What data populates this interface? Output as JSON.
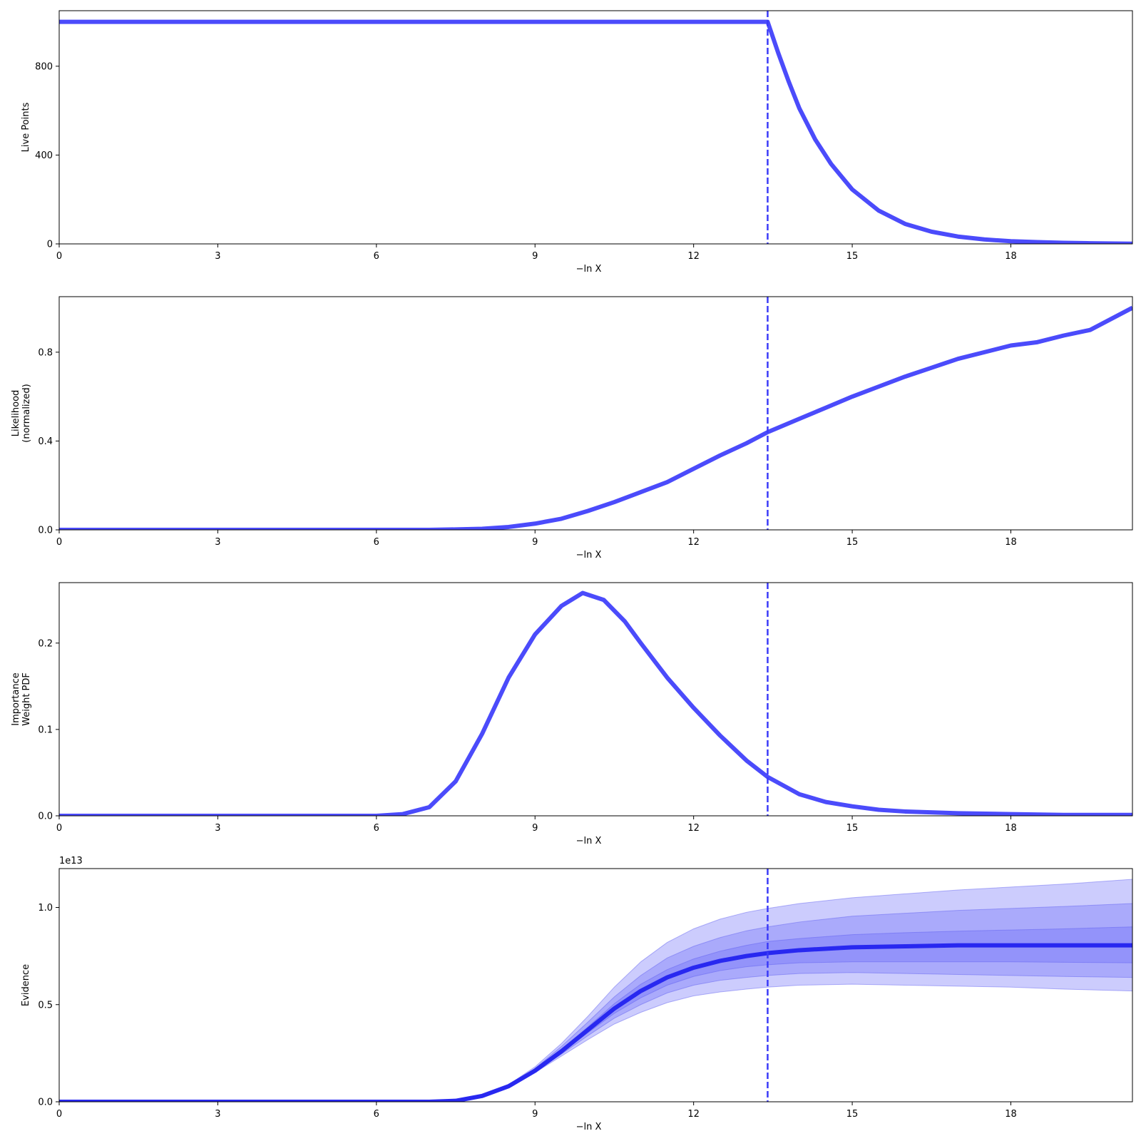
{
  "chart_data": [
    {
      "type": "line",
      "xlabel": "−ln X",
      "ylabel": "Live Points",
      "xlim": [
        0,
        20.3
      ],
      "ylim": [
        0,
        1050
      ],
      "xticks": [
        0,
        3,
        6,
        9,
        12,
        15,
        18
      ],
      "yticks": [
        0,
        400,
        800
      ],
      "ytick_labels": [
        "0",
        "400",
        "800"
      ],
      "vline_x": 13.4,
      "series": [
        {
          "x": [
            0,
            13.4,
            13.6,
            13.8,
            14.0,
            14.3,
            14.6,
            15.0,
            15.5,
            16.0,
            16.5,
            17.0,
            17.5,
            18.0,
            18.5,
            19.0,
            19.5,
            20.3
          ],
          "y": [
            1000,
            1000,
            860,
            730,
            610,
            470,
            360,
            245,
            150,
            90,
            55,
            33,
            20,
            12,
            8,
            5,
            3,
            1
          ]
        }
      ]
    },
    {
      "type": "line",
      "xlabel": "−ln X",
      "ylabel": "Likelihood\n(normalized)",
      "xlim": [
        0,
        20.3
      ],
      "ylim": [
        0,
        1.05
      ],
      "xticks": [
        0,
        3,
        6,
        9,
        12,
        15,
        18
      ],
      "yticks": [
        0,
        0.4,
        0.8
      ],
      "ytick_labels": [
        "0.0",
        "0.4",
        "0.8"
      ],
      "vline_x": 13.4,
      "series": [
        {
          "x": [
            0,
            7.0,
            7.5,
            8.0,
            8.5,
            9.0,
            9.5,
            10.0,
            10.5,
            11.0,
            11.5,
            12.0,
            12.5,
            13.0,
            13.4,
            14.0,
            14.5,
            15.0,
            15.5,
            16.0,
            16.5,
            17.0,
            17.5,
            18.0,
            18.5,
            19.0,
            19.5,
            20.3
          ],
          "y": [
            0,
            0,
            0.002,
            0.005,
            0.013,
            0.028,
            0.05,
            0.085,
            0.125,
            0.17,
            0.215,
            0.275,
            0.335,
            0.39,
            0.44,
            0.5,
            0.55,
            0.6,
            0.645,
            0.69,
            0.73,
            0.77,
            0.8,
            0.83,
            0.845,
            0.875,
            0.9,
            1.0
          ]
        }
      ]
    },
    {
      "type": "line",
      "xlabel": "−ln X",
      "ylabel": "Importance\nWeight PDF",
      "xlim": [
        0,
        20.3
      ],
      "ylim": [
        0,
        0.27
      ],
      "xticks": [
        0,
        3,
        6,
        9,
        12,
        15,
        18
      ],
      "yticks": [
        0,
        0.1,
        0.2
      ],
      "ytick_labels": [
        "0.0",
        "0.1",
        "0.2"
      ],
      "vline_x": 13.4,
      "series": [
        {
          "x": [
            0,
            6.0,
            6.5,
            7.0,
            7.5,
            8.0,
            8.5,
            9.0,
            9.5,
            9.9,
            10.3,
            10.7,
            11.0,
            11.5,
            12.0,
            12.5,
            13.0,
            13.4,
            14.0,
            14.5,
            15.0,
            15.5,
            16.0,
            17.0,
            18.0,
            19.0,
            20.3
          ],
          "y": [
            0,
            0,
            0.002,
            0.01,
            0.04,
            0.095,
            0.16,
            0.21,
            0.243,
            0.258,
            0.25,
            0.225,
            0.2,
            0.16,
            0.125,
            0.093,
            0.064,
            0.045,
            0.025,
            0.016,
            0.011,
            0.007,
            0.005,
            0.003,
            0.002,
            0.001,
            0.001
          ]
        }
      ]
    },
    {
      "type": "area",
      "xlabel": "−ln X",
      "ylabel": "Evidence",
      "offset_label": "1e13",
      "xlim": [
        0,
        20.3
      ],
      "ylim": [
        0,
        1.2
      ],
      "xticks": [
        0,
        3,
        6,
        9,
        12,
        15,
        18
      ],
      "yticks": [
        0,
        0.5,
        1.0
      ],
      "ytick_labels": [
        "0.0",
        "0.5",
        "1.0"
      ],
      "vline_x": 13.4,
      "x": [
        0,
        7.0,
        7.5,
        8.0,
        8.5,
        9.0,
        9.5,
        10.0,
        10.5,
        11.0,
        11.5,
        12.0,
        12.5,
        13.0,
        13.4,
        14.0,
        15.0,
        16.0,
        17.0,
        18.0,
        19.0,
        20.3
      ],
      "median": [
        0,
        0,
        0.005,
        0.03,
        0.08,
        0.16,
        0.26,
        0.37,
        0.48,
        0.57,
        0.64,
        0.69,
        0.725,
        0.75,
        0.765,
        0.78,
        0.795,
        0.8,
        0.805,
        0.805,
        0.805,
        0.805
      ],
      "bands": [
        {
          "lower": [
            0,
            0,
            0.004,
            0.027,
            0.075,
            0.15,
            0.235,
            0.32,
            0.4,
            0.46,
            0.51,
            0.545,
            0.565,
            0.58,
            0.59,
            0.6,
            0.605,
            0.6,
            0.595,
            0.59,
            0.58,
            0.57
          ],
          "upper": [
            0,
            0,
            0.006,
            0.033,
            0.088,
            0.18,
            0.3,
            0.44,
            0.59,
            0.72,
            0.82,
            0.89,
            0.94,
            0.975,
            0.995,
            1.02,
            1.05,
            1.07,
            1.09,
            1.105,
            1.12,
            1.145
          ]
        },
        {
          "lower": [
            0,
            0,
            0.0045,
            0.028,
            0.077,
            0.155,
            0.245,
            0.34,
            0.43,
            0.5,
            0.56,
            0.6,
            0.625,
            0.64,
            0.65,
            0.66,
            0.665,
            0.66,
            0.655,
            0.65,
            0.645,
            0.64
          ],
          "upper": [
            0,
            0,
            0.0055,
            0.032,
            0.085,
            0.172,
            0.285,
            0.41,
            0.54,
            0.65,
            0.74,
            0.8,
            0.845,
            0.88,
            0.9,
            0.925,
            0.955,
            0.97,
            0.985,
            0.995,
            1.005,
            1.02
          ]
        },
        {
          "lower": [
            0,
            0,
            0.0048,
            0.029,
            0.078,
            0.157,
            0.252,
            0.355,
            0.455,
            0.535,
            0.6,
            0.645,
            0.675,
            0.695,
            0.705,
            0.715,
            0.72,
            0.72,
            0.72,
            0.72,
            0.718,
            0.715
          ],
          "upper": [
            0,
            0,
            0.0052,
            0.031,
            0.082,
            0.165,
            0.27,
            0.385,
            0.505,
            0.605,
            0.68,
            0.735,
            0.775,
            0.805,
            0.825,
            0.84,
            0.86,
            0.87,
            0.878,
            0.884,
            0.89,
            0.9
          ]
        }
      ]
    }
  ]
}
